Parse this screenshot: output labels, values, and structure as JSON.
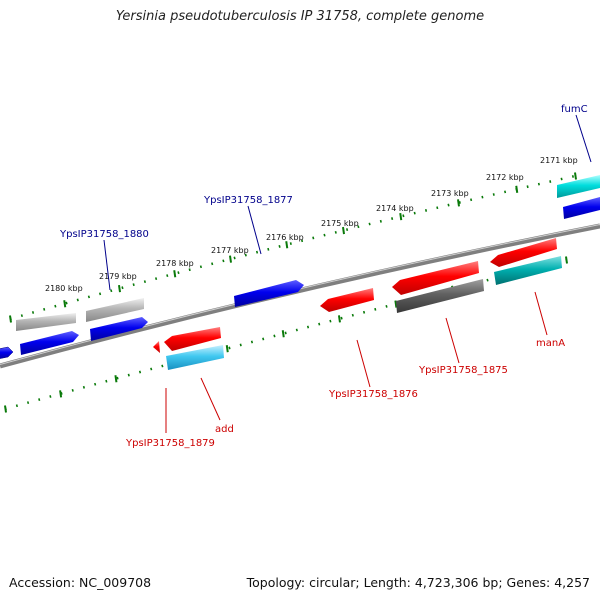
{
  "title": "Yersinia pseudotuberculosis IP 31758, complete genome",
  "footer": {
    "accession": "Accession: NC_009708",
    "summary": "Topology: circular; Length: 4,723,306 bp; Genes: 4,257"
  },
  "colors": {
    "forward_label": "#00008b",
    "reverse_label": "#cc0000",
    "tick": "#0a7a0a",
    "backbone": "#7f7f7f"
  },
  "scale_labels": [
    "2180 kbp",
    "2179 kbp",
    "2178 kbp",
    "2177 kbp",
    "2176 kbp",
    "2175 kbp",
    "2174 kbp",
    "2173 kbp",
    "2172 kbp",
    "2171 kbp"
  ],
  "gene_labels": {
    "forward": [
      "fumC",
      "YpsIP31758_1877",
      "YpsIP31758_1880"
    ],
    "reverse": [
      "manA",
      "YpsIP31758_1875",
      "YpsIP31758_1876",
      "add",
      "YpsIP31758_1879"
    ]
  }
}
